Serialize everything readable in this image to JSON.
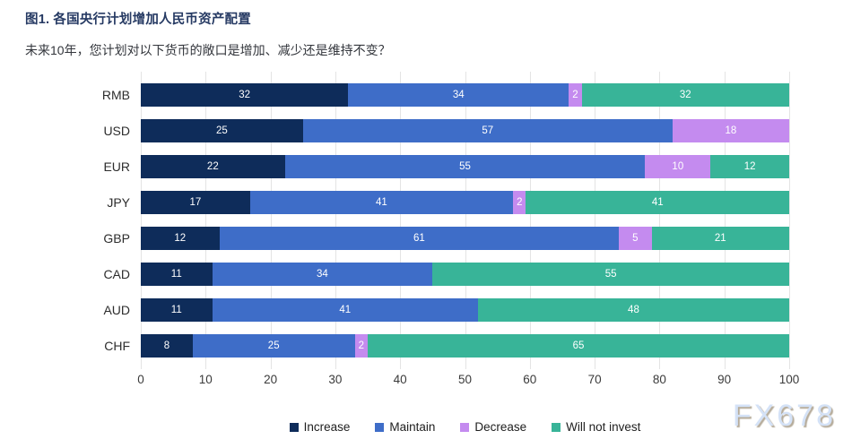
{
  "header": {
    "title": "图1. 各国央行计划增加人民币资产配置",
    "subtitle": "未来10年，您计划对以下货币的敞口是增加、减少还是维持不变？"
  },
  "chart_data": {
    "type": "bar",
    "orientation": "horizontal",
    "stacked": true,
    "normalized_to_100": true,
    "categories": [
      "RMB",
      "USD",
      "EUR",
      "JPY",
      "GBP",
      "CAD",
      "AUD",
      "CHF"
    ],
    "series": [
      {
        "name": "Increase",
        "color": "#0e2c5a",
        "values": [
          32,
          25,
          22,
          17,
          12,
          11,
          11,
          8
        ]
      },
      {
        "name": "Maintain",
        "color": "#3e6dc8",
        "values": [
          34,
          57,
          55,
          41,
          61,
          34,
          41,
          25
        ]
      },
      {
        "name": "Decrease",
        "color": "#c48bef",
        "values": [
          2,
          18,
          10,
          2,
          5,
          0,
          0,
          2
        ]
      },
      {
        "name": "Will not invest",
        "color": "#38b498",
        "values": [
          32,
          0,
          12,
          41,
          21,
          55,
          48,
          65
        ]
      }
    ],
    "xlim": [
      0,
      100
    ],
    "xticks": [
      0,
      10,
      20,
      30,
      40,
      50,
      60,
      70,
      80,
      90,
      100
    ],
    "grid": "vertical",
    "gridline_color": "#e4e4e4",
    "bar_label_color": "#ffffff",
    "legend_position": "bottom"
  },
  "watermark": "FX678"
}
